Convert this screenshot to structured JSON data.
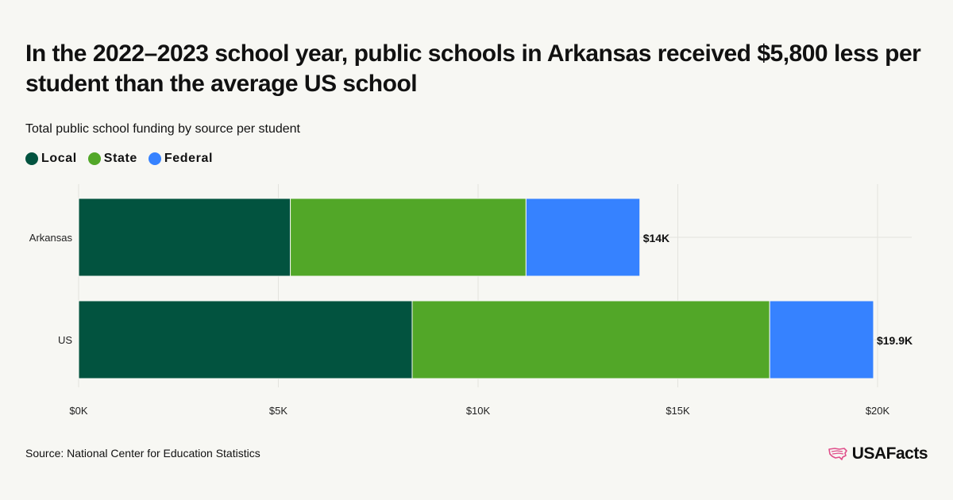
{
  "title": "In the 2022–2023 school year, public schools in Arkansas received $5,800 less per student than the average US school",
  "subtitle": "Total public school funding by source per student",
  "source": "Source: National Center for Education Statistics",
  "logo_text": "USAFacts",
  "chart_data": {
    "type": "bar",
    "orientation": "horizontal",
    "stacked": true,
    "categories": [
      "Arkansas",
      "US"
    ],
    "series": [
      {
        "name": "Local",
        "values": [
          5300,
          8350
        ],
        "color": "#02533f"
      },
      {
        "name": "State",
        "values": [
          5900,
          8950
        ],
        "color": "#52a728"
      },
      {
        "name": "Federal",
        "values": [
          2850,
          2600
        ],
        "color": "#3682ff"
      }
    ],
    "total_labels": [
      "$14K",
      "$19.9K"
    ],
    "x_ticks": [
      0,
      5000,
      10000,
      15000,
      20000
    ],
    "x_tick_labels": [
      "$0K",
      "$5K",
      "$10K",
      "$15K",
      "$20K"
    ],
    "xlim": [
      0,
      20000
    ],
    "grid": true,
    "legend_position": "top-left"
  }
}
